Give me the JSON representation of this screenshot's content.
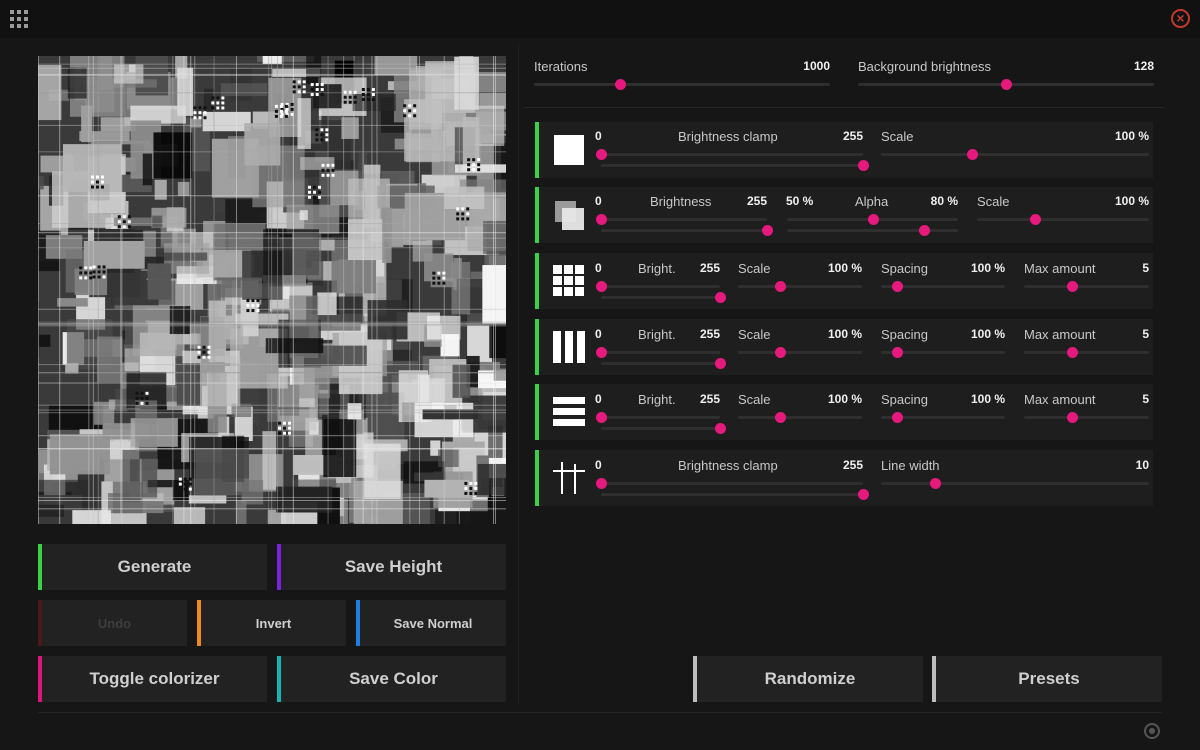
{
  "colors": {
    "accent_thumb": "#e6197d",
    "layer_active": "#36d24a",
    "generate": "#3ad04a",
    "save_height": "#7b22e0",
    "undo": "#4a1a1a",
    "invert": "#f08a1c",
    "save_normal": "#1e7fe0",
    "toggle_colorizer": "#e0157a",
    "save_color": "#17b3b8",
    "neutral": "#bdbdbd"
  },
  "icons": {
    "app_menu": "grid-icon",
    "close": "close-icon",
    "footer": "target-icon"
  },
  "buttons": {
    "generate": "Generate",
    "save_height": "Save Height",
    "undo": "Undo",
    "invert": "Invert",
    "save_normal": "Save Normal",
    "toggle_colorizer": "Toggle colorizer",
    "save_color": "Save Color",
    "randomize": "Randomize",
    "presets": "Presets"
  },
  "global": {
    "iterations": {
      "label": "Iterations",
      "value": "1000",
      "fraction": 0.29
    },
    "background_brightness": {
      "label": "Background brightness",
      "value": "128",
      "fraction": 0.5
    }
  },
  "layers": [
    {
      "icon": "square-icon",
      "brightness": {
        "min": "0",
        "label": "Brightness clamp",
        "max": "255",
        "low": 0.0,
        "high": 1.0
      },
      "scale": {
        "label": "Scale",
        "value": "100 %",
        "fraction": 0.34
      }
    },
    {
      "icon": "overlap-squares-icon",
      "brightness": {
        "min": "0",
        "label": "Brightness",
        "max": "255",
        "low": 0.0,
        "high": 1.0
      },
      "alpha": {
        "min": "50 %",
        "label": "Alpha",
        "max": "80 %",
        "low": 0.5,
        "high": 0.8
      },
      "scale": {
        "label": "Scale",
        "value": "100 %",
        "fraction": 0.34
      }
    },
    {
      "icon": "grid-squares-icon",
      "bright": {
        "min": "0",
        "label": "Bright.",
        "max": "255",
        "low": 0.0,
        "high": 1.0
      },
      "scale": {
        "label": "Scale",
        "value": "100 %",
        "fraction": 0.34
      },
      "spacing": {
        "label": "Spacing",
        "value": "100 %",
        "fraction": 0.13
      },
      "max_amount": {
        "label": "Max amount",
        "value": "5",
        "fraction": 0.38
      }
    },
    {
      "icon": "vertical-bars-icon",
      "bright": {
        "min": "0",
        "label": "Bright.",
        "max": "255",
        "low": 0.0,
        "high": 1.0
      },
      "scale": {
        "label": "Scale",
        "value": "100 %",
        "fraction": 0.34
      },
      "spacing": {
        "label": "Spacing",
        "value": "100 %",
        "fraction": 0.13
      },
      "max_amount": {
        "label": "Max amount",
        "value": "5",
        "fraction": 0.38
      }
    },
    {
      "icon": "horizontal-bars-icon",
      "bright": {
        "min": "0",
        "label": "Bright.",
        "max": "255",
        "low": 0.0,
        "high": 1.0
      },
      "scale": {
        "label": "Scale",
        "value": "100 %",
        "fraction": 0.34
      },
      "spacing": {
        "label": "Spacing",
        "value": "100 %",
        "fraction": 0.13
      },
      "max_amount": {
        "label": "Max amount",
        "value": "5",
        "fraction": 0.38
      }
    },
    {
      "icon": "crossed-lines-icon",
      "brightness": {
        "min": "0",
        "label": "Brightness clamp",
        "max": "255",
        "low": 0.0,
        "high": 1.0
      },
      "line_width": {
        "label": "Line width",
        "value": "10",
        "fraction": 0.2
      }
    }
  ]
}
